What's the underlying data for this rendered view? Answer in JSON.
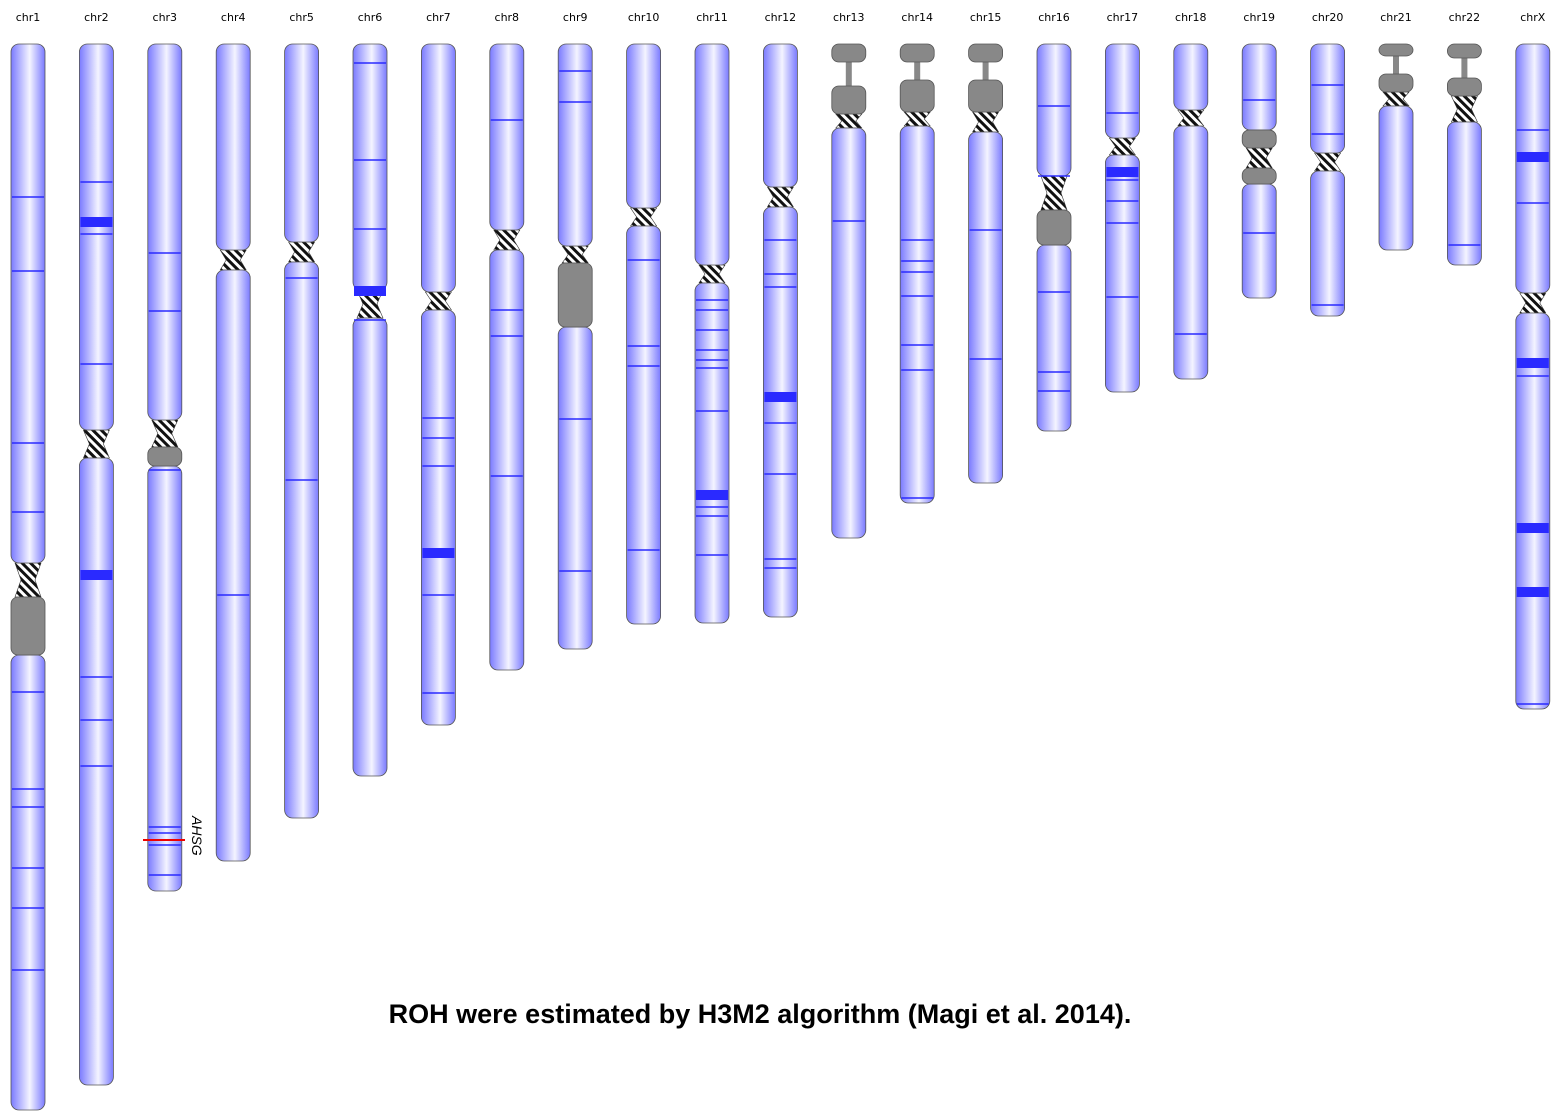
{
  "chromosomes": [
    "chr1",
    "chr2",
    "chr3",
    "chr4",
    "chr5",
    "chr6",
    "chr7",
    "chr8",
    "chr9",
    "chr10",
    "chr11",
    "chr12",
    "chr13",
    "chr14",
    "chr15",
    "chr16",
    "chr17",
    "chr18",
    "chr19",
    "chr20",
    "chr21",
    "chr22",
    "chrX"
  ],
  "annotation": {
    "gene": "AHSG"
  },
  "caption": "ROH were estimated by H3M2 algorithm (Magi et al. 2014)."
}
